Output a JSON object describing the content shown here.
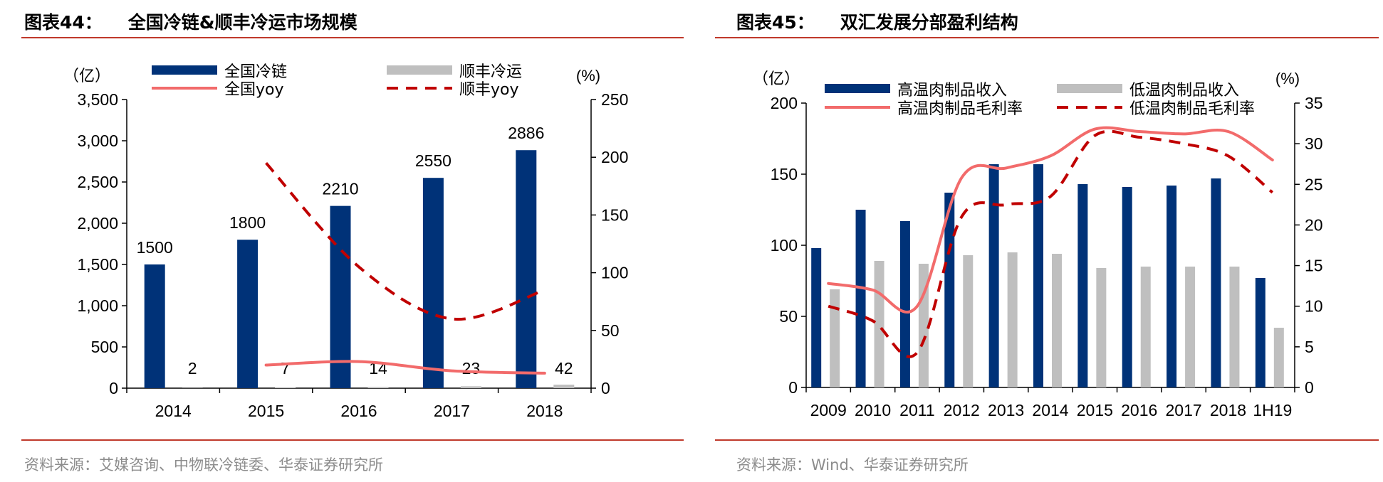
{
  "charts": {
    "left": {
      "fig_num": "图表44：",
      "title": "全国冷链&顺丰冷运市场规模",
      "source": "资料来源：艾媒咨询、中物联冷链委、华泰证券研究所"
    },
    "right": {
      "fig_num": "图表45：",
      "title": "双汇发展分部盈利结构",
      "source": "资料来源：Wind、华泰证券研究所"
    }
  },
  "chart_data": [
    {
      "type": "bar",
      "title": "全国冷链&顺丰冷运市场规模",
      "categories": [
        "2014",
        "2015",
        "2016",
        "2017",
        "2018"
      ],
      "ylabel": "（亿）",
      "ylabel_right": "(%)",
      "ylim": [
        0,
        3500
      ],
      "ylim_right": [
        0,
        250
      ],
      "yticks": [
        0,
        500,
        1000,
        1500,
        2000,
        2500,
        3000,
        3500
      ],
      "yticks_right": [
        0,
        50,
        100,
        150,
        200,
        250
      ],
      "grid": false,
      "legend_position": "top",
      "series": [
        {
          "name": "全国冷链",
          "kind": "bar",
          "axis": "left",
          "color": "#003278",
          "values": [
            1500,
            1800,
            2210,
            2550,
            2886
          ],
          "labels": [
            "1500",
            "1800",
            "2210",
            "2550",
            "2886"
          ]
        },
        {
          "name": "顺丰冷运",
          "kind": "bar",
          "axis": "left",
          "color": "#bfbfbf",
          "values": [
            2,
            7,
            14,
            23,
            42
          ],
          "labels": [
            "2",
            "7",
            "14",
            "23",
            "42"
          ]
        },
        {
          "name": "全国yoy",
          "kind": "line",
          "axis": "right",
          "color": "#f26b6b",
          "values": [
            null,
            20,
            23,
            15,
            13
          ]
        },
        {
          "name": "顺丰yoy",
          "kind": "dashed",
          "axis": "right",
          "color": "#c00000",
          "values": [
            null,
            195,
            105,
            60,
            85
          ]
        }
      ]
    },
    {
      "type": "bar",
      "title": "双汇发展分部盈利结构",
      "categories": [
        "2009",
        "2010",
        "2011",
        "2012",
        "2013",
        "2014",
        "2015",
        "2016",
        "2017",
        "2018",
        "1H19"
      ],
      "ylabel": "（亿）",
      "ylabel_right": "(%)",
      "ylim": [
        0,
        200
      ],
      "ylim_right": [
        0,
        35
      ],
      "yticks": [
        0,
        50,
        100,
        150,
        200
      ],
      "yticks_right": [
        0,
        5,
        10,
        15,
        20,
        25,
        30,
        35
      ],
      "grid": false,
      "legend_position": "top",
      "series": [
        {
          "name": "高温肉制品收入",
          "kind": "bar",
          "axis": "left",
          "color": "#003278",
          "values": [
            98,
            125,
            117,
            137,
            157,
            157,
            143,
            141,
            142,
            147,
            77
          ]
        },
        {
          "name": "低温肉制品收入",
          "kind": "bar",
          "axis": "left",
          "color": "#bfbfbf",
          "values": [
            69,
            89,
            87,
            93,
            95,
            94,
            84,
            85,
            85,
            85,
            42
          ]
        },
        {
          "name": "高温肉制品毛利率",
          "kind": "line",
          "axis": "right",
          "color": "#f26b6b",
          "values": [
            12.8,
            12.0,
            10.0,
            25.8,
            27.0,
            28.5,
            31.8,
            31.5,
            31.2,
            31.5,
            28.0
          ]
        },
        {
          "name": "低温肉制品毛利率",
          "kind": "dashed",
          "axis": "right",
          "color": "#c00000",
          "values": [
            10.0,
            8.2,
            4.3,
            21.0,
            22.5,
            23.5,
            31.0,
            30.8,
            30.0,
            28.5,
            24.0
          ]
        }
      ]
    }
  ]
}
